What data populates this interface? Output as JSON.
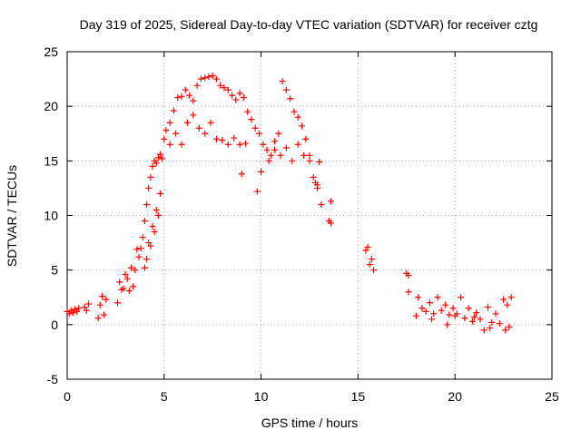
{
  "chart_data": {
    "type": "scatter",
    "title": "Day 319 of 2025, Sidereal Day-to-day VTEC variation (SDTVAR) for receiver cztg",
    "xlabel": "GPS time / hours",
    "ylabel": "SDTVAR / TECUs",
    "xlim": [
      0,
      25
    ],
    "ylim": [
      -5,
      25
    ],
    "xticks": [
      0,
      5,
      10,
      15,
      20,
      25
    ],
    "yticks": [
      -5,
      0,
      5,
      10,
      15,
      20,
      25
    ],
    "xtick_labels": [
      "0",
      "5",
      "10",
      "15",
      "20",
      "25"
    ],
    "ytick_labels": [
      "-5",
      "0",
      "5",
      "10",
      "15",
      "20",
      "25"
    ],
    "grid": true,
    "marker": "+",
    "colors": {
      "points": "#ff0000",
      "grid": "#a0a0a0",
      "axis": "#000000"
    },
    "series": [
      {
        "name": "SDTVAR",
        "x": [
          0.0,
          0.1,
          0.2,
          0.3,
          0.4,
          0.5,
          0.6,
          0.9,
          1.0,
          1.1,
          1.6,
          1.7,
          1.8,
          1.9,
          2.0,
          2.6,
          2.7,
          2.8,
          3.1,
          3.2,
          3.3,
          3.4,
          3.5,
          3.6,
          3.7,
          3.8,
          3.9,
          4.0,
          4.1,
          4.2,
          4.3,
          4.4,
          4.5,
          4.6,
          4.7,
          4.8,
          4.9,
          5.0,
          5.1,
          5.3,
          5.5,
          5.7,
          5.9,
          6.1,
          6.3,
          6.5,
          6.7,
          6.9,
          7.1,
          7.3,
          7.5,
          7.7,
          7.9,
          8.1,
          8.3,
          8.5,
          8.7,
          8.9,
          9.1,
          9.3,
          9.5,
          9.7,
          9.9,
          10.1,
          10.3,
          10.5,
          10.7,
          10.9,
          11.1,
          11.3,
          11.5,
          11.7,
          11.9,
          12.1,
          12.3,
          12.5,
          12.7,
          12.9,
          13.1,
          13.5,
          13.6,
          15.5,
          15.6,
          15.7,
          17.5,
          17.6,
          18.1,
          18.3,
          18.5,
          18.7,
          18.9,
          19.1,
          19.3,
          19.5,
          19.7,
          19.9,
          20.1,
          20.3,
          20.5,
          20.7,
          20.9,
          21.1,
          21.3,
          21.5,
          21.7,
          21.9,
          22.1,
          22.3,
          22.5,
          22.7,
          22.9,
          5.3,
          5.6,
          5.9,
          6.2,
          6.5,
          6.8,
          7.1,
          7.4,
          7.7,
          8.0,
          8.3,
          8.6,
          8.9,
          9.2,
          10.4,
          10.7,
          11.0,
          11.3,
          11.6,
          11.9,
          12.2,
          12.5,
          12.8,
          4.0,
          4.2,
          4.4,
          4.6,
          4.8,
          4.1,
          4.3,
          4.5,
          4.7,
          2.9,
          3.0,
          9.0,
          9.8,
          10.0,
          12.9,
          13.0,
          13.6,
          15.4,
          15.8,
          17.6,
          18.0,
          18.8,
          19.6,
          20.0,
          21.0,
          21.8,
          22.6,
          22.8
        ],
        "y": [
          1.2,
          1.0,
          1.3,
          1.1,
          1.4,
          1.2,
          1.5,
          1.6,
          1.3,
          1.9,
          0.6,
          1.8,
          2.6,
          0.9,
          2.3,
          2.0,
          3.9,
          3.2,
          4.2,
          3.1,
          5.2,
          3.5,
          5.0,
          6.9,
          6.2,
          7.0,
          8.0,
          9.5,
          11.0,
          12.5,
          13.5,
          14.5,
          15.0,
          14.8,
          15.3,
          15.6,
          15.2,
          17.0,
          17.8,
          18.5,
          19.6,
          20.8,
          20.9,
          21.5,
          21.0,
          20.5,
          21.9,
          22.5,
          22.6,
          22.7,
          22.8,
          22.5,
          21.9,
          21.7,
          21.5,
          21.0,
          20.6,
          21.2,
          20.8,
          19.5,
          18.8,
          18.0,
          17.5,
          16.5,
          16.0,
          15.5,
          16.8,
          17.5,
          22.3,
          21.5,
          20.7,
          19.5,
          19.0,
          18.2,
          17.0,
          15.5,
          13.5,
          12.5,
          11.0,
          9.5,
          9.3,
          7.1,
          5.5,
          6.0,
          4.7,
          3.0,
          2.5,
          1.5,
          1.2,
          2.0,
          1.0,
          2.5,
          1.3,
          1.8,
          0.9,
          1.5,
          1.0,
          2.5,
          0.6,
          1.5,
          0.3,
          1.1,
          0.5,
          -0.5,
          1.6,
          0.2,
          1.0,
          0.1,
          2.3,
          1.8,
          2.5,
          16.5,
          17.5,
          16.5,
          18.5,
          19.2,
          18.0,
          17.5,
          18.5,
          17.0,
          16.9,
          16.5,
          17.1,
          16.5,
          16.6,
          15.0,
          16.0,
          15.5,
          16.2,
          15.0,
          16.5,
          15.5,
          15.0,
          13.0,
          5.2,
          7.5,
          9.0,
          10.5,
          12.0,
          6.0,
          7.2,
          8.5,
          10.0,
          3.3,
          4.6,
          13.8,
          12.2,
          14.0,
          12.8,
          14.9,
          11.3,
          6.8,
          5.0,
          4.5,
          0.8,
          0.5,
          0.0,
          0.8,
          0.7,
          -0.3,
          -0.5,
          -0.2
        ]
      }
    ]
  }
}
